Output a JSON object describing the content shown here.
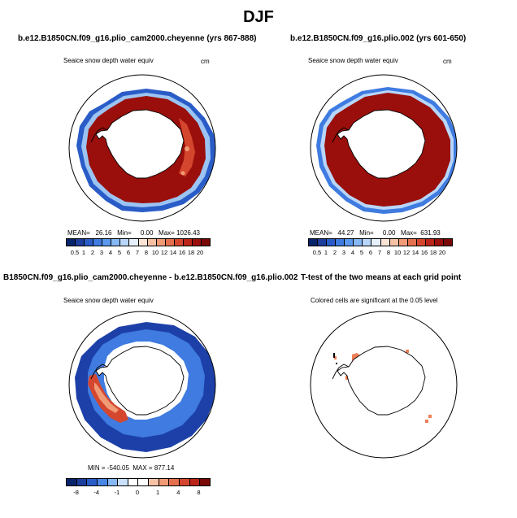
{
  "figure": {
    "title": "DJF",
    "panels": [
      {
        "title": "b.e12.B1850CN.f09_g16.plio_cam2000.cheyenne (yrs 867-888)",
        "subtitle": "Seaice snow depth water equiv",
        "units": "cm",
        "stats": "MEAN=   26.16   Min=     0.00   Max= 1026.43",
        "colorbar": {
          "labels": [
            "0.5",
            "1",
            "2",
            "3",
            "4",
            "5",
            "6",
            "7",
            "8",
            "10",
            "12",
            "14",
            "16",
            "18",
            "20"
          ],
          "colors": [
            "#08246b",
            "#1c3e9c",
            "#2a5cc8",
            "#3f7be0",
            "#5a99ee",
            "#86b8f4",
            "#b8d6fa",
            "#e6f0fb",
            "#fbe4d6",
            "#f7c1a6",
            "#f09a76",
            "#e5704f",
            "#d4472e",
            "#bb2418",
            "#9a0f0b",
            "#7a0806"
          ]
        }
      },
      {
        "title": "b.e12.B1850CN.f09_g16.plio.002 (yrs 601-650)",
        "subtitle": "Seaice snow depth water equiv",
        "units": "cm",
        "stats": "MEAN=   44.27   Min=     0.00   Max=  631.93",
        "colorbar": {
          "labels": [
            "0.5",
            "1",
            "2",
            "3",
            "4",
            "5",
            "6",
            "7",
            "8",
            "10",
            "12",
            "14",
            "16",
            "18",
            "20"
          ],
          "colors": [
            "#08246b",
            "#1c3e9c",
            "#2a5cc8",
            "#3f7be0",
            "#5a99ee",
            "#86b8f4",
            "#b8d6fa",
            "#e6f0fb",
            "#fbe4d6",
            "#f7c1a6",
            "#f09a76",
            "#e5704f",
            "#d4472e",
            "#bb2418",
            "#9a0f0b",
            "#7a0806"
          ]
        }
      },
      {
        "title": "B1850CN.f09_g16.plio_cam2000.cheyenne - b.e12.B1850CN.f09_g16.plio.002",
        "subtitle": "Seaice snow depth water equiv",
        "stats": "MIN = -540.05  MAX = 877.14",
        "colorbar": {
          "labels": [
            "-8",
            "-4",
            "-1",
            "0",
            "1",
            "4",
            "8"
          ],
          "colors": [
            "#08246b",
            "#1c3e9c",
            "#2a5cc8",
            "#4a86e6",
            "#86b8f4",
            "#c8e0fa",
            "#ffffff",
            "#ffffff",
            "#f7c1a6",
            "#f09a76",
            "#e5704f",
            "#d4472e",
            "#bb2418",
            "#7a0806"
          ]
        }
      },
      {
        "title": "T-test of the two means at each grid point",
        "subtitle": "Colored cells are significant at the 0.05 level"
      }
    ],
    "colors": {
      "ice_dark_red": "#9a0f0b",
      "ice_blue": "#2a5cc8",
      "diff_blue": "#1d40a8",
      "ttest_orange": "#f07f55"
    }
  }
}
